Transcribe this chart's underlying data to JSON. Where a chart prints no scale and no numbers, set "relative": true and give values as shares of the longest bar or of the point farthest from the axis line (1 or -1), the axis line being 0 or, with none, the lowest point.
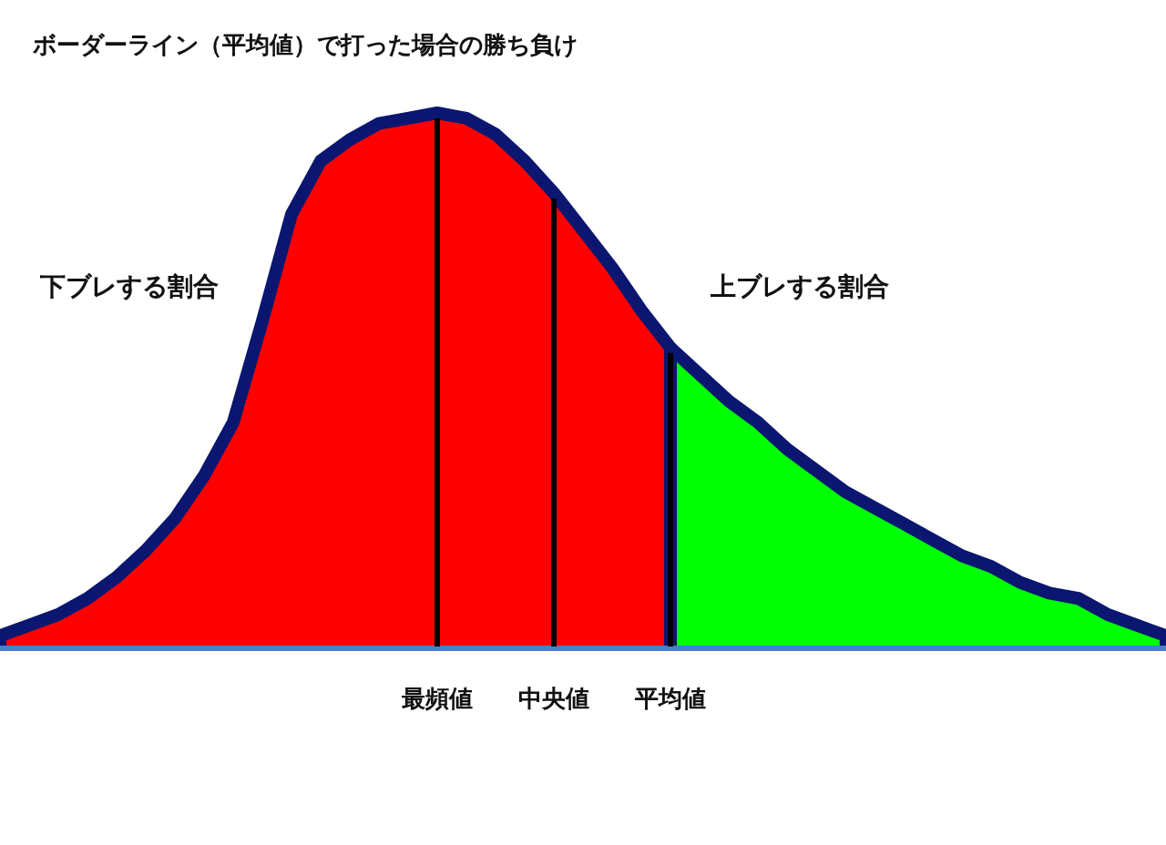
{
  "chart_data": {
    "type": "area",
    "title": "ボーダーライン（平均値）で打った場合の勝ち負け",
    "relative": true,
    "categories": [
      null,
      null,
      null,
      null,
      null,
      null,
      null,
      null,
      null,
      null,
      null,
      null,
      null,
      null,
      null,
      "最頻値",
      null,
      null,
      null,
      "中央値",
      null,
      null,
      null,
      "平均値",
      null,
      null,
      null,
      null,
      null,
      null,
      null,
      null,
      null,
      null,
      null,
      null,
      null,
      null,
      null,
      null,
      null
    ],
    "series": [
      {
        "color": "#ff0000",
        "values": [
          0.02,
          0.04,
          0.06,
          0.09,
          0.13,
          0.18,
          0.24,
          0.32,
          0.42,
          0.61,
          0.81,
          0.91,
          0.95,
          0.98,
          0.99,
          1.0,
          0.99,
          0.96,
          0.91,
          0.85,
          0.78,
          0.71,
          0.63,
          0.56,
          null,
          null,
          null,
          null,
          null,
          null,
          null,
          null,
          null,
          null,
          null,
          null,
          null,
          null,
          null,
          null,
          null
        ]
      },
      {
        "color": "#00ff00",
        "values": [
          null,
          null,
          null,
          null,
          null,
          null,
          null,
          null,
          null,
          null,
          null,
          null,
          null,
          null,
          null,
          null,
          null,
          null,
          null,
          null,
          null,
          null,
          null,
          0.56,
          0.51,
          0.46,
          0.42,
          0.37,
          0.33,
          0.29,
          0.26,
          0.23,
          0.2,
          0.17,
          0.15,
          0.12,
          0.1,
          0.09,
          0.06,
          0.04,
          0.02
        ]
      }
    ],
    "annotations": [
      "下ブレする割合",
      "上ブレする割合"
    ]
  }
}
